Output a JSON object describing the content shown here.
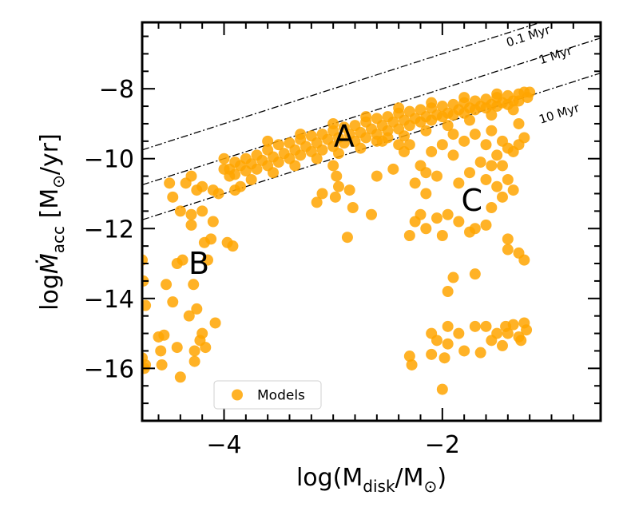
{
  "chart_data": {
    "type": "scatter",
    "xlabel_main": "log(M",
    "xlabel_sub": "disk",
    "xlabel_mid": "/M",
    "xlabel_sun": "⊙",
    "xlabel_end": ")",
    "ylabel_main": "log",
    "ylabel_var": "Ṁ",
    "ylabel_sub": "acc",
    "ylabel_units": " [M",
    "ylabel_sun": "⊙",
    "ylabel_end": "/yr]",
    "xlim": [
      -4.75,
      -0.55
    ],
    "ylim": [
      -17.5,
      -6.1
    ],
    "xticks": [
      -4,
      -2
    ],
    "xtick_labels": [
      "−4",
      "−2"
    ],
    "yticks": [
      -16,
      -14,
      -12,
      -10,
      -8
    ],
    "ytick_labels": [
      "−16",
      "−14",
      "−12",
      "−10",
      "−8"
    ],
    "isochrones": [
      {
        "label": "0.1 Myr",
        "log_t": 5,
        "label_x": -1.4,
        "label_y": -6.8
      },
      {
        "label": "1 Myr",
        "log_t": 6,
        "label_x": -1.1,
        "label_y": -7.3
      },
      {
        "label": "10 Myr",
        "log_t": 7,
        "label_x": -1.1,
        "label_y": -9.0
      }
    ],
    "region_labels": [
      {
        "text": "A",
        "x": -2.9,
        "y": -9.35
      },
      {
        "text": "B",
        "x": -4.23,
        "y": -13.0
      },
      {
        "text": "C",
        "x": -1.73,
        "y": -11.2
      }
    ],
    "legend": {
      "entries": [
        "Models"
      ],
      "placement": "lower-left"
    },
    "series": [
      {
        "name": "Models",
        "color": "#ffa500",
        "points": [
          [
            -4.75,
            -15.7
          ],
          [
            -4.72,
            -15.9
          ],
          [
            -4.73,
            -16.0
          ],
          [
            -4.72,
            -14.2
          ],
          [
            -4.74,
            -13.5
          ],
          [
            -4.75,
            -12.9
          ],
          [
            -4.6,
            -15.1
          ],
          [
            -4.58,
            -15.5
          ],
          [
            -4.55,
            -15.05
          ],
          [
            -4.57,
            -15.9
          ],
          [
            -4.53,
            -13.6
          ],
          [
            -4.47,
            -14.1
          ],
          [
            -4.43,
            -15.4
          ],
          [
            -4.4,
            -16.25
          ],
          [
            -4.43,
            -13.0
          ],
          [
            -4.38,
            -12.9
          ],
          [
            -4.32,
            -14.5
          ],
          [
            -4.27,
            -15.8
          ],
          [
            -4.28,
            -13.6
          ],
          [
            -4.3,
            -11.9
          ],
          [
            -4.27,
            -15.5
          ],
          [
            -4.22,
            -15.2
          ],
          [
            -4.2,
            -15.0
          ],
          [
            -4.17,
            -15.4
          ],
          [
            -4.25,
            -14.3
          ],
          [
            -4.18,
            -12.4
          ],
          [
            -4.15,
            -12.9
          ],
          [
            -4.12,
            -12.3
          ],
          [
            -4.08,
            -14.7
          ],
          [
            -4.1,
            -11.8
          ],
          [
            -4.2,
            -11.5
          ],
          [
            -4.3,
            -11.6
          ],
          [
            -4.4,
            -11.5
          ],
          [
            -4.5,
            -10.7
          ],
          [
            -4.47,
            -11.1
          ],
          [
            -3.97,
            -12.4
          ],
          [
            -3.92,
            -12.5
          ],
          [
            -4.35,
            -10.7
          ],
          [
            -4.3,
            -10.5
          ],
          [
            -4.25,
            -10.9
          ],
          [
            -4.2,
            -10.8
          ],
          [
            -4.1,
            -10.9
          ],
          [
            -4.05,
            -11.0
          ],
          [
            -4.0,
            -10.3
          ],
          [
            -3.95,
            -10.5
          ],
          [
            -3.9,
            -10.9
          ],
          [
            -3.85,
            -10.8
          ],
          [
            -4.0,
            -10.0
          ],
          [
            -3.9,
            -10.1
          ],
          [
            -3.8,
            -10.0
          ],
          [
            -3.7,
            -9.9
          ],
          [
            -3.6,
            -9.75
          ],
          [
            -3.5,
            -9.6
          ],
          [
            -3.4,
            -9.55
          ],
          [
            -3.3,
            -9.45
          ],
          [
            -3.2,
            -9.35
          ],
          [
            -3.1,
            -9.3
          ],
          [
            -3.0,
            -9.2
          ],
          [
            -2.9,
            -9.1
          ],
          [
            -2.8,
            -9.05
          ],
          [
            -2.7,
            -8.95
          ],
          [
            -2.6,
            -8.85
          ],
          [
            -2.5,
            -8.8
          ],
          [
            -2.4,
            -8.7
          ],
          [
            -2.3,
            -8.65
          ],
          [
            -2.2,
            -8.6
          ],
          [
            -2.1,
            -8.55
          ],
          [
            -2.0,
            -8.5
          ],
          [
            -1.9,
            -8.45
          ],
          [
            -1.8,
            -8.4
          ],
          [
            -1.7,
            -8.35
          ],
          [
            -1.6,
            -8.3
          ],
          [
            -1.5,
            -8.25
          ],
          [
            -1.4,
            -8.2
          ],
          [
            -1.3,
            -8.15
          ],
          [
            -1.25,
            -8.1
          ],
          [
            -3.95,
            -10.3
          ],
          [
            -3.85,
            -10.2
          ],
          [
            -3.75,
            -10.15
          ],
          [
            -3.65,
            -10.05
          ],
          [
            -3.55,
            -9.95
          ],
          [
            -3.45,
            -9.85
          ],
          [
            -3.35,
            -9.75
          ],
          [
            -3.25,
            -9.65
          ],
          [
            -3.15,
            -9.55
          ],
          [
            -3.05,
            -9.45
          ],
          [
            -2.95,
            -9.4
          ],
          [
            -2.85,
            -9.3
          ],
          [
            -2.75,
            -9.25
          ],
          [
            -2.65,
            -9.15
          ],
          [
            -2.55,
            -9.05
          ],
          [
            -2.45,
            -8.95
          ],
          [
            -2.35,
            -8.9
          ],
          [
            -2.25,
            -8.85
          ],
          [
            -2.15,
            -8.8
          ],
          [
            -2.05,
            -8.75
          ],
          [
            -1.95,
            -8.7
          ],
          [
            -1.85,
            -8.6
          ],
          [
            -1.75,
            -8.55
          ],
          [
            -1.65,
            -8.5
          ],
          [
            -1.55,
            -8.45
          ],
          [
            -1.45,
            -8.4
          ],
          [
            -1.35,
            -8.35
          ],
          [
            -3.9,
            -10.45
          ],
          [
            -3.8,
            -10.35
          ],
          [
            -3.7,
            -10.3
          ],
          [
            -3.6,
            -10.2
          ],
          [
            -3.5,
            -10.1
          ],
          [
            -3.4,
            -10.0
          ],
          [
            -3.3,
            -9.9
          ],
          [
            -3.2,
            -9.8
          ],
          [
            -3.1,
            -9.75
          ],
          [
            -3.0,
            -9.65
          ],
          [
            -2.9,
            -9.55
          ],
          [
            -2.8,
            -9.5
          ],
          [
            -2.7,
            -9.4
          ],
          [
            -2.6,
            -9.3
          ],
          [
            -2.5,
            -9.2
          ],
          [
            -2.4,
            -9.15
          ],
          [
            -2.3,
            -9.05
          ],
          [
            -2.2,
            -8.95
          ],
          [
            -2.1,
            -8.9
          ],
          [
            -2.0,
            -8.8
          ],
          [
            -1.9,
            -8.75
          ],
          [
            -1.8,
            -8.7
          ],
          [
            -1.7,
            -8.6
          ],
          [
            -1.6,
            -8.55
          ],
          [
            -1.5,
            -8.5
          ],
          [
            -1.4,
            -8.45
          ],
          [
            -1.3,
            -8.35
          ],
          [
            -1.2,
            -8.1
          ],
          [
            -1.22,
            -8.25
          ],
          [
            -3.6,
            -9.5
          ],
          [
            -3.3,
            -9.3
          ],
          [
            -3.0,
            -9.0
          ],
          [
            -2.7,
            -8.8
          ],
          [
            -2.4,
            -8.55
          ],
          [
            -2.1,
            -8.4
          ],
          [
            -1.8,
            -8.25
          ],
          [
            -1.5,
            -8.15
          ],
          [
            -3.75,
            -10.6
          ],
          [
            -3.55,
            -10.4
          ],
          [
            -3.35,
            -10.2
          ],
          [
            -3.15,
            -10.0
          ],
          [
            -2.95,
            -9.85
          ],
          [
            -2.75,
            -9.7
          ],
          [
            -2.55,
            -9.5
          ],
          [
            -2.35,
            -9.35
          ],
          [
            -2.15,
            -9.2
          ],
          [
            -1.95,
            -9.05
          ],
          [
            -1.75,
            -8.9
          ],
          [
            -1.55,
            -8.75
          ],
          [
            -1.35,
            -8.6
          ],
          [
            -3.0,
            -10.2
          ],
          [
            -2.97,
            -10.5
          ],
          [
            -2.95,
            -10.8
          ],
          [
            -2.98,
            -11.1
          ],
          [
            -3.1,
            -11.0
          ],
          [
            -3.15,
            -11.25
          ],
          [
            -2.85,
            -10.9
          ],
          [
            -2.82,
            -11.4
          ],
          [
            -2.87,
            -12.25
          ],
          [
            -2.6,
            -10.5
          ],
          [
            -2.45,
            -10.3
          ],
          [
            -2.35,
            -9.8
          ],
          [
            -2.2,
            -10.2
          ],
          [
            -2.15,
            -11.0
          ],
          [
            -2.2,
            -11.6
          ],
          [
            -2.25,
            -11.8
          ],
          [
            -2.3,
            -12.2
          ],
          [
            -2.65,
            -11.6
          ],
          [
            -2.3,
            -9.6
          ],
          [
            -2.1,
            -9.8
          ],
          [
            -2.0,
            -9.6
          ],
          [
            -1.9,
            -9.9
          ],
          [
            -1.8,
            -9.5
          ],
          [
            -1.7,
            -9.3
          ],
          [
            -1.6,
            -9.6
          ],
          [
            -1.5,
            -9.9
          ],
          [
            -1.45,
            -10.2
          ],
          [
            -1.4,
            -10.6
          ],
          [
            -1.35,
            -9.8
          ],
          [
            -1.3,
            -9.0
          ],
          [
            -1.35,
            -10.9
          ],
          [
            -1.45,
            -11.1
          ],
          [
            -1.55,
            -11.4
          ],
          [
            -1.6,
            -11.9
          ],
          [
            -1.7,
            -12.0
          ],
          [
            -1.75,
            -12.1
          ],
          [
            -1.85,
            -11.8
          ],
          [
            -1.95,
            -11.6
          ],
          [
            -2.05,
            -11.7
          ],
          [
            -2.0,
            -12.2
          ],
          [
            -2.15,
            -12.0
          ],
          [
            -1.4,
            -12.3
          ],
          [
            -1.4,
            -12.6
          ],
          [
            -1.3,
            -12.7
          ],
          [
            -1.25,
            -12.9
          ],
          [
            -1.9,
            -13.4
          ],
          [
            -1.95,
            -13.8
          ],
          [
            -1.7,
            -13.3
          ],
          [
            -2.3,
            -15.65
          ],
          [
            -2.28,
            -15.9
          ],
          [
            -2.1,
            -15.0
          ],
          [
            -2.05,
            -15.2
          ],
          [
            -2.1,
            -15.6
          ],
          [
            -1.95,
            -14.8
          ],
          [
            -1.95,
            -15.3
          ],
          [
            -1.98,
            -15.7
          ],
          [
            -2.0,
            -16.6
          ],
          [
            -1.8,
            -15.5
          ],
          [
            -1.65,
            -15.55
          ],
          [
            -1.6,
            -14.8
          ],
          [
            -1.55,
            -15.2
          ],
          [
            -1.5,
            -15.0
          ],
          [
            -1.45,
            -15.35
          ],
          [
            -1.4,
            -15.0
          ],
          [
            -1.35,
            -14.75
          ],
          [
            -1.3,
            -15.1
          ],
          [
            -1.25,
            -14.7
          ],
          [
            -1.23,
            -14.9
          ],
          [
            -1.28,
            -15.2
          ],
          [
            -1.42,
            -14.8
          ],
          [
            -1.7,
            -14.8
          ],
          [
            -1.85,
            -15.0
          ],
          [
            -2.25,
            -10.7
          ],
          [
            -2.05,
            -10.5
          ],
          [
            -1.85,
            -10.7
          ],
          [
            -1.75,
            -10.4
          ],
          [
            -1.65,
            -10.1
          ],
          [
            -1.9,
            -9.3
          ],
          [
            -1.55,
            -9.2
          ],
          [
            -1.45,
            -9.5
          ],
          [
            -1.6,
            -10.6
          ],
          [
            -1.5,
            -10.8
          ],
          [
            -2.15,
            -10.4
          ],
          [
            -2.5,
            -9.4
          ],
          [
            -2.4,
            -9.6
          ],
          [
            -2.6,
            -9.5
          ],
          [
            -1.25,
            -9.4
          ],
          [
            -1.3,
            -9.6
          ],
          [
            -1.4,
            -9.7
          ],
          [
            -1.55,
            -10.2
          ]
        ]
      }
    ]
  }
}
